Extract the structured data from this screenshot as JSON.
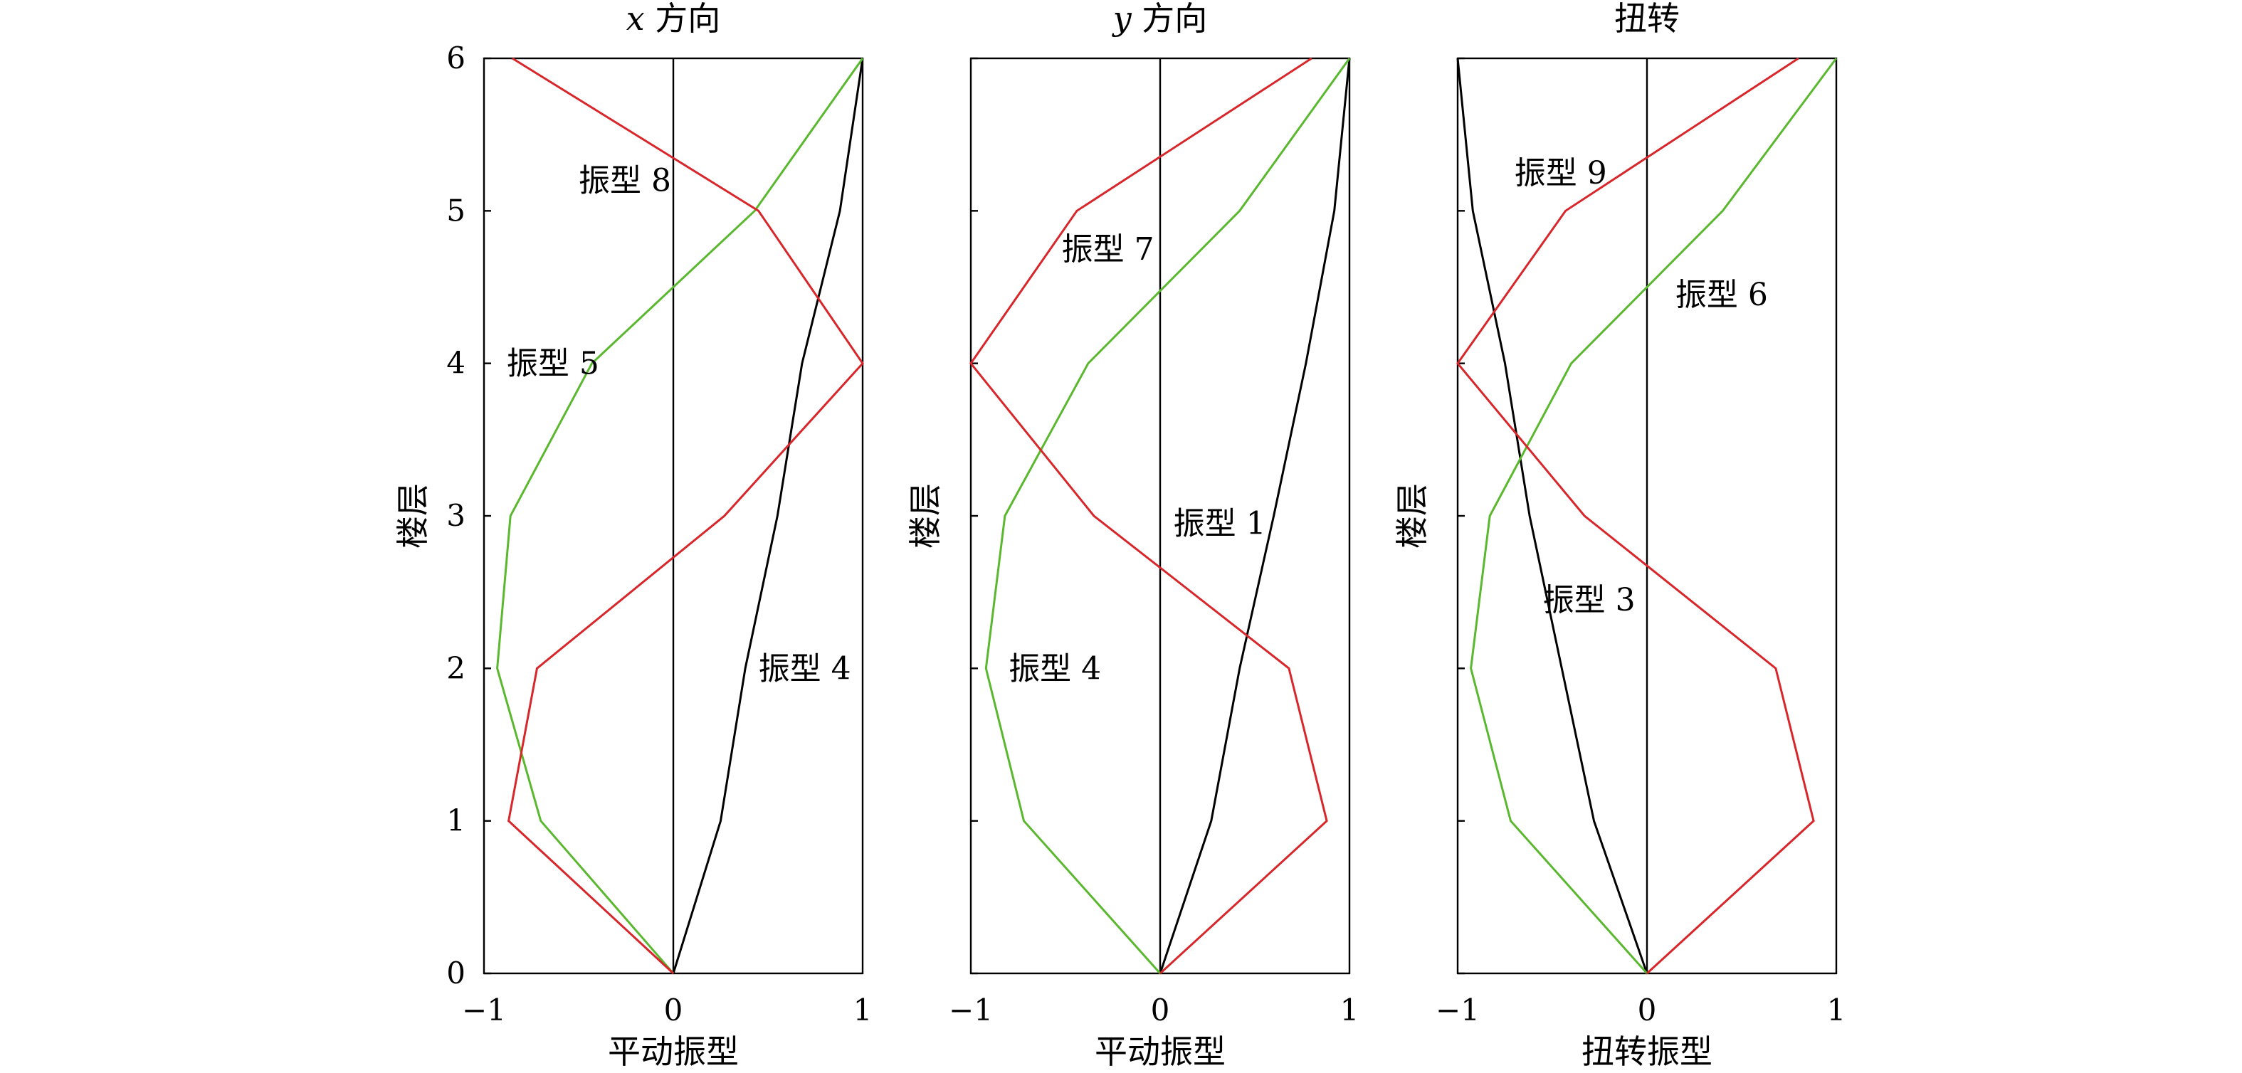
{
  "chart_data": [
    {
      "type": "line",
      "title_var": "x",
      "title_rest": " 方向",
      "xlabel": "平动振型",
      "ylabel": "楼层",
      "xlim": [
        -1,
        1
      ],
      "ylim": [
        0,
        6
      ],
      "xticks": [
        "−1",
        "0",
        "1"
      ],
      "yticks": [
        "0",
        "1",
        "2",
        "3",
        "4",
        "5",
        "6"
      ],
      "grid": false,
      "series": [
        {
          "color": "#000000",
          "x": [
            0,
            0.25,
            0.38,
            0.55,
            0.68,
            0.88,
            1.0
          ],
          "y": [
            0,
            1,
            2,
            3,
            4,
            5,
            6
          ]
        },
        {
          "color": "#5ab82e",
          "x": [
            0,
            -0.7,
            -0.93,
            -0.86,
            -0.43,
            0.43,
            1.0
          ],
          "y": [
            0,
            1,
            2,
            3,
            4,
            5,
            6
          ]
        },
        {
          "color": "#d8262a",
          "x": [
            0,
            -0.87,
            -0.72,
            0.27,
            1.0,
            0.45,
            -0.85
          ],
          "y": [
            0,
            1,
            2,
            3,
            4,
            5,
            6
          ]
        }
      ],
      "annotations": [
        {
          "text": "振型 8",
          "x": -0.5,
          "y": 5.2
        },
        {
          "text": "振型 5",
          "x": -0.88,
          "y": 4.0
        },
        {
          "text": "振型 4",
          "x": 0.45,
          "y": 2.0
        }
      ]
    },
    {
      "type": "line",
      "title_var": "y",
      "title_rest": " 方向",
      "xlabel": "平动振型",
      "ylabel": "楼层",
      "xlim": [
        -1,
        1
      ],
      "ylim": [
        0,
        6
      ],
      "xticks": [
        "−1",
        "0",
        "1"
      ],
      "yticks": [],
      "grid": false,
      "series": [
        {
          "color": "#000000",
          "x": [
            0,
            0.27,
            0.42,
            0.6,
            0.77,
            0.92,
            1.0
          ],
          "y": [
            0,
            1,
            2,
            3,
            4,
            5,
            6
          ]
        },
        {
          "color": "#5ab82e",
          "x": [
            0,
            -0.72,
            -0.92,
            -0.82,
            -0.38,
            0.42,
            1.0
          ],
          "y": [
            0,
            1,
            2,
            3,
            4,
            5,
            6
          ]
        },
        {
          "color": "#d8262a",
          "x": [
            0,
            0.88,
            0.68,
            -0.35,
            -1.0,
            -0.44,
            0.8
          ],
          "y": [
            0,
            1,
            2,
            3,
            4,
            5,
            6
          ]
        }
      ],
      "annotations": [
        {
          "text": "振型 7",
          "x": -0.52,
          "y": 4.75
        },
        {
          "text": "振型 1",
          "x": 0.07,
          "y": 2.95
        },
        {
          "text": "振型 4",
          "x": -0.8,
          "y": 2.0
        }
      ]
    },
    {
      "type": "line",
      "title_var": "",
      "title_rest": "扭转",
      "xlabel": "扭转振型",
      "ylabel": "楼层",
      "xlim": [
        -1,
        1
      ],
      "ylim": [
        0,
        6
      ],
      "xticks": [
        "−1",
        "0",
        "1"
      ],
      "yticks": [],
      "grid": false,
      "series": [
        {
          "color": "#000000",
          "x": [
            0,
            -0.28,
            -0.45,
            -0.62,
            -0.75,
            -0.92,
            -1.0
          ],
          "y": [
            0,
            1,
            2,
            3,
            4,
            5,
            6
          ]
        },
        {
          "color": "#5ab82e",
          "x": [
            0,
            -0.72,
            -0.93,
            -0.83,
            -0.4,
            0.4,
            1.0
          ],
          "y": [
            0,
            1,
            2,
            3,
            4,
            5,
            6
          ]
        },
        {
          "color": "#d8262a",
          "x": [
            0,
            0.88,
            0.68,
            -0.33,
            -1.0,
            -0.43,
            0.8
          ],
          "y": [
            0,
            1,
            2,
            3,
            4,
            5,
            6
          ]
        }
      ],
      "annotations": [
        {
          "text": "振型 9",
          "x": -0.7,
          "y": 5.25
        },
        {
          "text": "振型 6",
          "x": 0.15,
          "y": 4.45
        },
        {
          "text": "振型 3",
          "x": -0.55,
          "y": 2.45
        }
      ]
    }
  ]
}
